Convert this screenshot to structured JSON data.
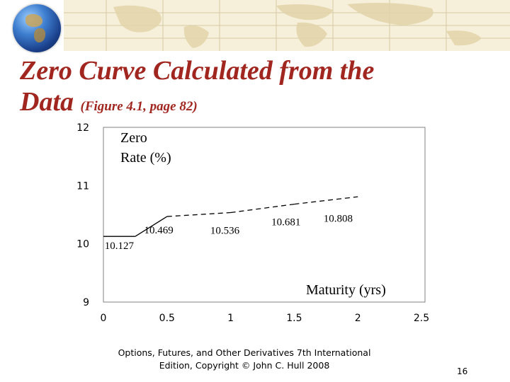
{
  "title": {
    "main": "Zero Curve Calculated from the Data",
    "main_line1": "Zero Curve Calculated from the",
    "main_line2": "Data",
    "subtitle": "(Figure 4.1, page 82)"
  },
  "footer": {
    "line1": "Options, Futures, and Other Derivatives 7th International",
    "line2": "Edition, Copyright © John C. Hull 2008"
  },
  "page_number": "16",
  "colors": {
    "title": "#a0261f",
    "banner": "#f6efd9"
  },
  "chart_data": {
    "type": "line",
    "ylabel_line1": "Zero",
    "ylabel_line2": "Rate (%)",
    "xlabel": "Maturity (yrs)",
    "xlim": [
      0,
      2.5
    ],
    "ylim": [
      9,
      12
    ],
    "xticks": [
      "0",
      "0.5",
      "1",
      "1.5",
      "2",
      "2.5"
    ],
    "yticks": [
      "9",
      "10",
      "11",
      "12"
    ],
    "grid": false,
    "series": [
      {
        "x": [
          0,
          0.25,
          0.5,
          1.0,
          1.5,
          2.0
        ],
        "y": [
          10.127,
          10.127,
          10.469,
          10.536,
          10.681,
          10.808
        ],
        "style": "dashed after 0.5"
      }
    ],
    "data_labels": [
      "10.127",
      "10.469",
      "10.536",
      "10.681",
      "10.808"
    ]
  }
}
